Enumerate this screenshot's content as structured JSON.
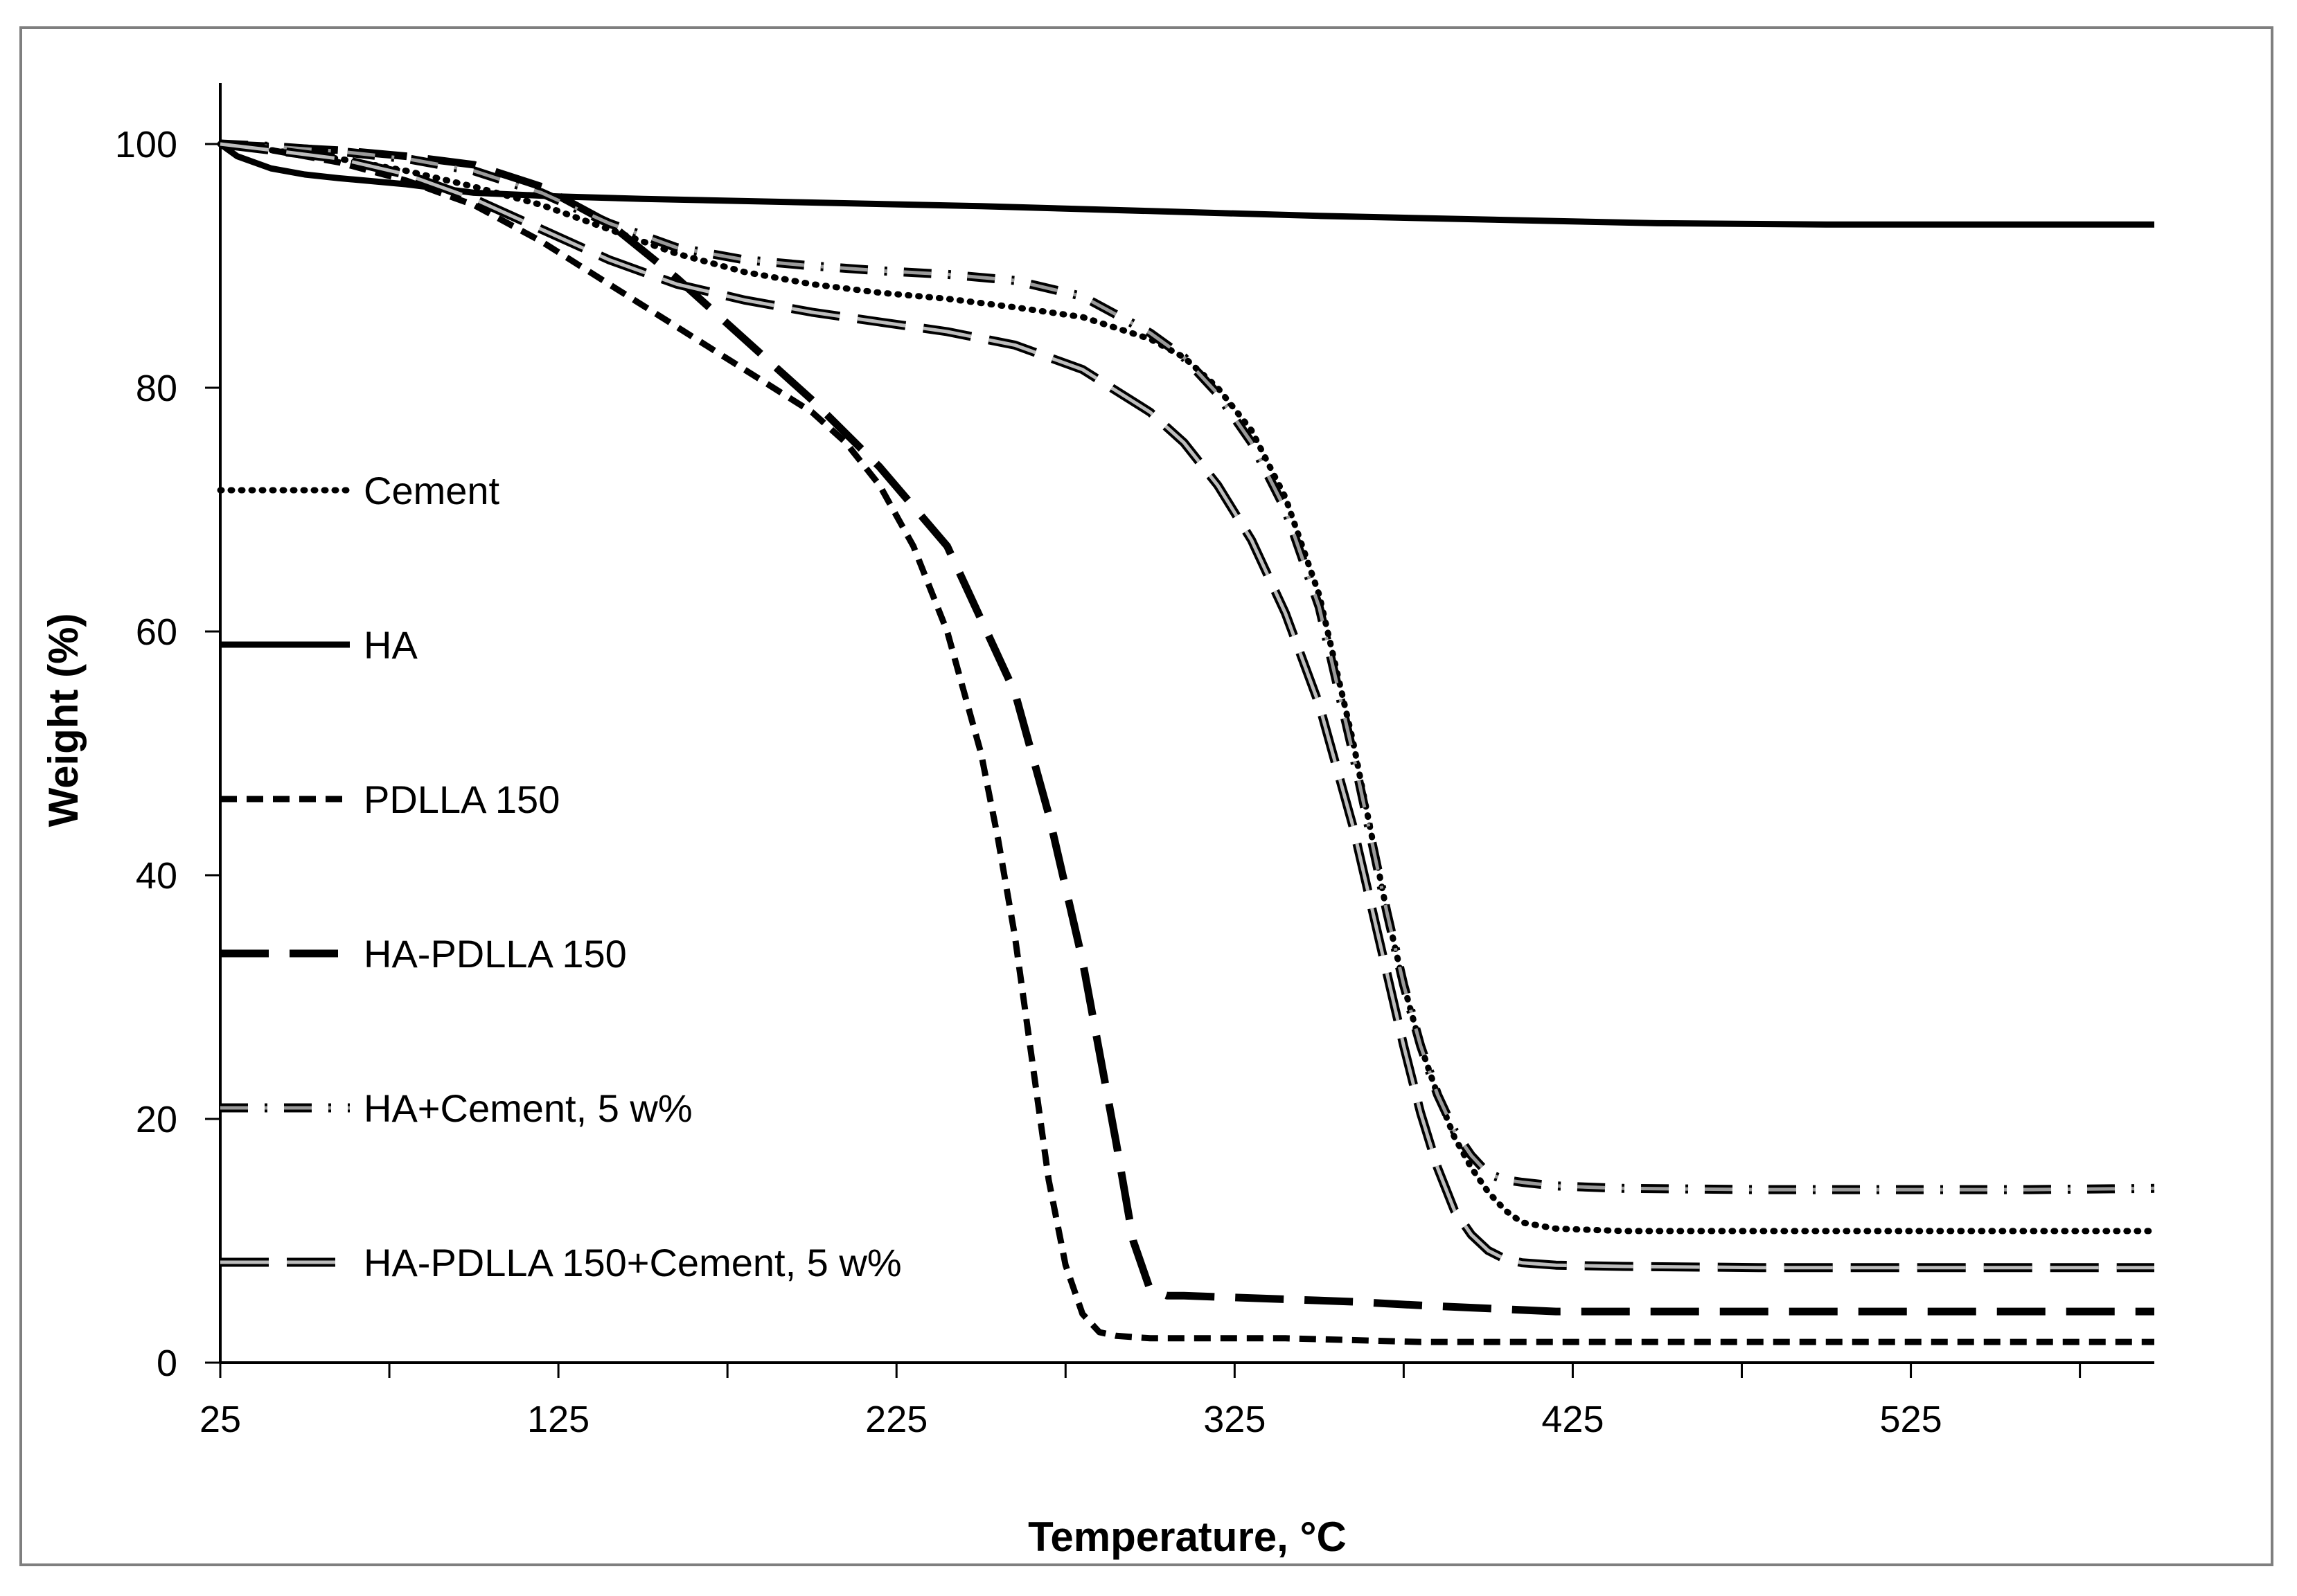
{
  "chart_data": {
    "type": "line",
    "title": "",
    "xlabel": "Temperature, °C",
    "ylabel": "Weight (%)",
    "xlim": [
      25,
      597
    ],
    "ylim": [
      0,
      105
    ],
    "x_ticks": [
      25,
      125,
      225,
      325,
      425,
      525
    ],
    "y_ticks": [
      0,
      20,
      40,
      60,
      80,
      100
    ],
    "grid": false,
    "legend_position": "left",
    "series": [
      {
        "name": "Cement",
        "style": "dotted",
        "color": "#000000",
        "x": [
          25,
          40,
          60,
          80,
          100,
          120,
          140,
          160,
          180,
          200,
          220,
          240,
          260,
          280,
          300,
          310,
          320,
          330,
          340,
          350,
          360,
          365,
          370,
          375,
          380,
          385,
          390,
          395,
          400,
          405,
          410,
          420,
          440,
          480,
          520,
          560,
          597
        ],
        "y": [
          100,
          99.5,
          98.8,
          97.8,
          96.5,
          95,
          93,
          91,
          89.5,
          88.5,
          87.8,
          87.3,
          86.6,
          85.8,
          84,
          82.5,
          80,
          76.5,
          71,
          63,
          51,
          44,
          37,
          31,
          26,
          22,
          18.5,
          16,
          14,
          12.5,
          11.5,
          11,
          10.8,
          10.8,
          10.8,
          10.8,
          10.8
        ]
      },
      {
        "name": "HA",
        "style": "solid",
        "color": "#000000",
        "x": [
          25,
          30,
          40,
          50,
          60,
          80,
          100,
          125,
          150,
          200,
          250,
          300,
          350,
          400,
          450,
          500,
          550,
          597
        ],
        "y": [
          100,
          99,
          98,
          97.5,
          97.2,
          96.7,
          96,
          95.7,
          95.5,
          95.2,
          94.9,
          94.5,
          94.1,
          93.8,
          93.5,
          93.4,
          93.4,
          93.4
        ]
      },
      {
        "name": "PDLLA 150",
        "style": "short-dashed",
        "color": "#000000",
        "x": [
          25,
          40,
          60,
          80,
          100,
          120,
          140,
          160,
          180,
          200,
          210,
          220,
          230,
          240,
          250,
          255,
          260,
          265,
          270,
          275,
          280,
          285,
          290,
          300,
          320,
          340,
          380,
          420,
          460,
          500,
          540,
          580,
          597
        ],
        "y": [
          100,
          99.5,
          98.5,
          97,
          95,
          92,
          88.5,
          85,
          81.5,
          78,
          75.5,
          72,
          67,
          60,
          50,
          43,
          35,
          25,
          15,
          8,
          4,
          2.5,
          2.2,
          2,
          2,
          2,
          1.7,
          1.7,
          1.7,
          1.7,
          1.7,
          1.7,
          1.7
        ]
      },
      {
        "name": "HA-PDLLA 150",
        "style": "long-dashed",
        "color": "#000000",
        "x": [
          25,
          40,
          60,
          80,
          100,
          120,
          140,
          160,
          180,
          200,
          220,
          240,
          260,
          270,
          280,
          290,
          295,
          300,
          305,
          310,
          320,
          340,
          360,
          380,
          420,
          460,
          500,
          540,
          580,
          597
        ],
        "y": [
          100,
          99.8,
          99.5,
          99,
          98.3,
          96.5,
          93.5,
          89,
          84,
          79,
          73.5,
          67,
          55,
          45,
          33,
          18,
          10,
          6,
          5.5,
          5.5,
          5.4,
          5.2,
          5,
          4.7,
          4.2,
          4.2,
          4.2,
          4.2,
          4.2,
          4.2
        ]
      },
      {
        "name": "HA+Cement, 5 w%",
        "style": "dash-dot",
        "color": "#808080",
        "x": [
          25,
          40,
          60,
          80,
          100,
          120,
          140,
          160,
          180,
          200,
          220,
          240,
          260,
          280,
          300,
          310,
          320,
          330,
          340,
          350,
          360,
          365,
          370,
          375,
          380,
          385,
          390,
          395,
          400,
          405,
          410,
          420,
          440,
          480,
          520,
          560,
          597
        ],
        "y": [
          100,
          99.8,
          99.4,
          98.8,
          97.8,
          96,
          93.5,
          91.5,
          90.5,
          90,
          89.6,
          89.3,
          88.8,
          87.5,
          84.5,
          82.5,
          79.5,
          75.5,
          70,
          62,
          50,
          43.5,
          37,
          31,
          26,
          22,
          19,
          17,
          15.5,
          15,
          14.8,
          14.5,
          14.3,
          14.2,
          14.2,
          14.2,
          14.3
        ]
      },
      {
        "name": "HA-PDLLA 150+Cement, 5 w%",
        "style": "double-line-dashed",
        "color": "#808080",
        "x": [
          25,
          40,
          60,
          80,
          100,
          120,
          140,
          160,
          180,
          200,
          220,
          240,
          260,
          280,
          300,
          310,
          320,
          330,
          340,
          350,
          360,
          365,
          370,
          375,
          380,
          385,
          390,
          395,
          400,
          405,
          410,
          420,
          440,
          480,
          520,
          560,
          597
        ],
        "y": [
          100,
          99.5,
          98.8,
          97.5,
          95.5,
          93,
          90.5,
          88.5,
          87.2,
          86.2,
          85.4,
          84.6,
          83.5,
          81.5,
          78,
          75.5,
          72,
          67.5,
          61.5,
          54,
          44,
          38,
          32,
          26,
          20.5,
          16,
          12.5,
          10.5,
          9.2,
          8.5,
          8.2,
          8,
          7.9,
          7.8,
          7.8,
          7.8,
          7.8
        ]
      }
    ]
  }
}
